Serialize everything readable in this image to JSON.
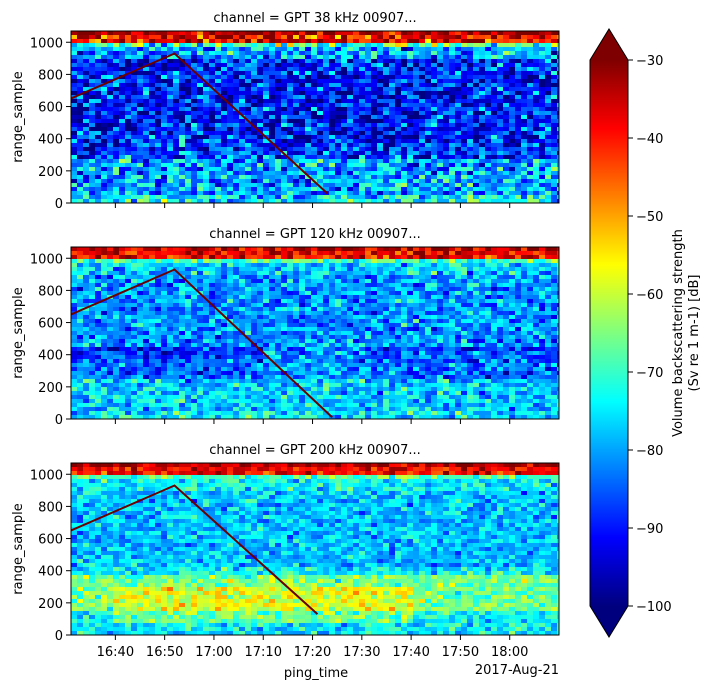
{
  "figure": {
    "date_label": "2017-Aug-21",
    "xlabel": "ping_time"
  },
  "chart_data": [
    {
      "type": "heatmap",
      "title": "channel = GPT  38 kHz 00907...",
      "ylabel": "range_sample",
      "ylim": [
        0,
        1070
      ],
      "yticks": [
        0,
        200,
        400,
        600,
        800,
        1000
      ],
      "xlim": [
        "16:31",
        "18:10"
      ],
      "xticks": [
        "16:40",
        "16:50",
        "17:00",
        "17:10",
        "17:20",
        "17:30",
        "17:40",
        "17:50",
        "18:00"
      ],
      "overlay_line": [
        [
          "16:31",
          650
        ],
        [
          "16:52",
          930
        ],
        [
          "17:23",
          60
        ]
      ],
      "surface_band_range_sample": [
        1000,
        1060
      ],
      "dense_layer_range_sample": [
        280,
        420
      ],
      "speckle_level": "high"
    },
    {
      "type": "heatmap",
      "title": "channel = GPT 120 kHz 00907...",
      "ylabel": "range_sample",
      "ylim": [
        0,
        1070
      ],
      "yticks": [
        0,
        200,
        400,
        600,
        800,
        1000
      ],
      "xlim": [
        "16:31",
        "18:10"
      ],
      "xticks": [
        "16:40",
        "16:50",
        "17:00",
        "17:10",
        "17:20",
        "17:30",
        "17:40",
        "17:50",
        "18:00"
      ],
      "overlay_line": [
        [
          "16:31",
          650
        ],
        [
          "16:52",
          930
        ],
        [
          "17:24",
          10
        ]
      ],
      "surface_band_range_sample": [
        1000,
        1060
      ],
      "dense_layer_range_sample": [
        250,
        450
      ],
      "speckle_level": "medium"
    },
    {
      "type": "heatmap",
      "title": "channel = GPT 200 kHz 00907...",
      "ylabel": "range_sample",
      "ylim": [
        0,
        1070
      ],
      "yticks": [
        0,
        200,
        400,
        600,
        800,
        1000
      ],
      "xlim": [
        "16:31",
        "18:10"
      ],
      "xticks": [
        "16:40",
        "16:50",
        "17:00",
        "17:10",
        "17:20",
        "17:30",
        "17:40",
        "17:50",
        "18:00"
      ],
      "overlay_line": [
        [
          "16:31",
          650
        ],
        [
          "16:52",
          930
        ],
        [
          "17:21",
          130
        ]
      ],
      "surface_band_range_sample": [
        1000,
        1060
      ],
      "dense_layer_range_sample": [
        150,
        380
      ],
      "speckle_level": "low"
    }
  ],
  "colorbar": {
    "label_line1": "Volume backscattering strength",
    "label_line2": "(Sv re 1 m-1) [dB]",
    "vmin": -100,
    "vmax": -30,
    "ticks": [
      -30,
      -40,
      -50,
      -60,
      -70,
      -80,
      -90,
      -100
    ],
    "tick_labels": [
      "−30",
      "−40",
      "−50",
      "−60",
      "−70",
      "−80",
      "−90",
      "−100"
    ],
    "extend": "both",
    "colormap": "jet",
    "colors": [
      "#00007f",
      "#0000ff",
      "#007fff",
      "#00ffff",
      "#7fff7f",
      "#ffff00",
      "#ff7f00",
      "#ff0000",
      "#7f0000"
    ]
  }
}
